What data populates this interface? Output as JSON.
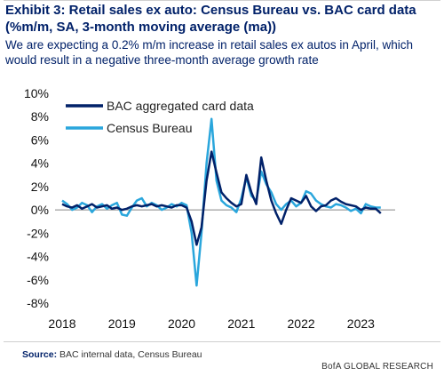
{
  "header": {
    "title": "Exhibit 3: Retail sales ex auto: Census Bureau vs. BAC card data (%m/m, SA, 3-month moving average (ma))",
    "subtitle": "We are expecting a 0.2% m/m increase in retail sales ex autos in April, which would result in a negative three-month average growth rate"
  },
  "footer": {
    "source_label": "Source:",
    "source_text": "BAC internal data, Census Bureau",
    "brand": "BofA GLOBAL RESEARCH"
  },
  "colors": {
    "bac": "#012169",
    "census": "#2aa6dc"
  },
  "chart_data": {
    "type": "line",
    "title": "",
    "xlabel": "",
    "ylabel": "",
    "x_range": [
      2018.0,
      2023.5
    ],
    "ylim": [
      -8,
      10
    ],
    "y_ticks": [
      "10%",
      "8%",
      "6%",
      "4%",
      "2%",
      "0%",
      "-2%",
      "-4%",
      "-6%",
      "-8%"
    ],
    "x_ticks": [
      "2018",
      "2019",
      "2020",
      "2021",
      "2022",
      "2023"
    ],
    "grid": false,
    "legend_position": "top-left",
    "series": [
      {
        "name": "BAC aggregated card data",
        "color": "#012169",
        "x": [
          2018.0,
          2018.083,
          2018.167,
          2018.25,
          2018.333,
          2018.417,
          2018.5,
          2018.583,
          2018.667,
          2018.75,
          2018.833,
          2018.917,
          2019.0,
          2019.083,
          2019.167,
          2019.25,
          2019.333,
          2019.417,
          2019.5,
          2019.583,
          2019.667,
          2019.75,
          2019.833,
          2019.917,
          2020.0,
          2020.083,
          2020.167,
          2020.25,
          2020.333,
          2020.417,
          2020.5,
          2020.583,
          2020.667,
          2020.75,
          2020.833,
          2020.917,
          2021.0,
          2021.083,
          2021.167,
          2021.25,
          2021.333,
          2021.417,
          2021.5,
          2021.583,
          2021.667,
          2021.75,
          2021.833,
          2021.917,
          2022.0,
          2022.083,
          2022.167,
          2022.25,
          2022.333,
          2022.417,
          2022.5,
          2022.583,
          2022.667,
          2022.75,
          2022.833,
          2022.917,
          2023.0,
          2023.083,
          2023.167,
          2023.25,
          2023.333
        ],
        "values": [
          0.5,
          0.3,
          0.2,
          0.4,
          0.1,
          0.3,
          0.5,
          0.2,
          0.3,
          0.4,
          0.1,
          0.2,
          0.0,
          0.1,
          0.3,
          0.4,
          0.3,
          0.4,
          0.5,
          0.3,
          0.4,
          0.3,
          0.2,
          0.4,
          0.4,
          0.2,
          -1.0,
          -3.0,
          -1.5,
          2.5,
          5.0,
          3.2,
          1.5,
          1.0,
          0.6,
          0.3,
          0.5,
          3.0,
          1.5,
          0.5,
          4.5,
          2.5,
          0.8,
          -0.3,
          -1.2,
          0.0,
          1.0,
          0.8,
          0.6,
          1.2,
          0.3,
          -0.1,
          0.3,
          0.4,
          0.8,
          1.0,
          0.7,
          0.5,
          0.4,
          0.3,
          0.0,
          0.2,
          0.1,
          0.1,
          -0.3
        ]
      },
      {
        "name": "Census Bureau",
        "color": "#2aa6dc",
        "x": [
          2018.0,
          2018.083,
          2018.167,
          2018.25,
          2018.333,
          2018.417,
          2018.5,
          2018.583,
          2018.667,
          2018.75,
          2018.833,
          2018.917,
          2019.0,
          2019.083,
          2019.167,
          2019.25,
          2019.333,
          2019.417,
          2019.5,
          2019.583,
          2019.667,
          2019.75,
          2019.833,
          2019.917,
          2020.0,
          2020.083,
          2020.167,
          2020.25,
          2020.333,
          2020.417,
          2020.5,
          2020.583,
          2020.667,
          2020.75,
          2020.833,
          2020.917,
          2021.0,
          2021.083,
          2021.167,
          2021.25,
          2021.333,
          2021.417,
          2021.5,
          2021.583,
          2021.667,
          2021.75,
          2021.833,
          2021.917,
          2022.0,
          2022.083,
          2022.167,
          2022.25,
          2022.333,
          2022.417,
          2022.5,
          2022.583,
          2022.667,
          2022.75,
          2022.833,
          2022.917,
          2023.0,
          2023.083,
          2023.167,
          2023.25,
          2023.333
        ],
        "values": [
          0.8,
          0.5,
          0.0,
          0.2,
          0.6,
          0.4,
          -0.2,
          0.3,
          0.5,
          0.1,
          0.4,
          0.6,
          -0.4,
          -0.5,
          0.2,
          0.8,
          1.0,
          0.3,
          0.6,
          0.4,
          0.0,
          0.2,
          0.5,
          0.3,
          0.6,
          0.4,
          -2.0,
          -6.5,
          -2.0,
          4.0,
          7.8,
          2.5,
          0.8,
          0.4,
          0.2,
          -0.2,
          1.0,
          2.8,
          1.2,
          0.8,
          3.3,
          2.2,
          1.5,
          0.5,
          0.0,
          0.5,
          0.8,
          0.3,
          0.6,
          1.6,
          1.4,
          0.8,
          0.5,
          0.3,
          0.2,
          0.5,
          0.4,
          0.2,
          -0.1,
          0.1,
          -0.3,
          0.5,
          0.3,
          0.2,
          0.2
        ]
      }
    ]
  }
}
